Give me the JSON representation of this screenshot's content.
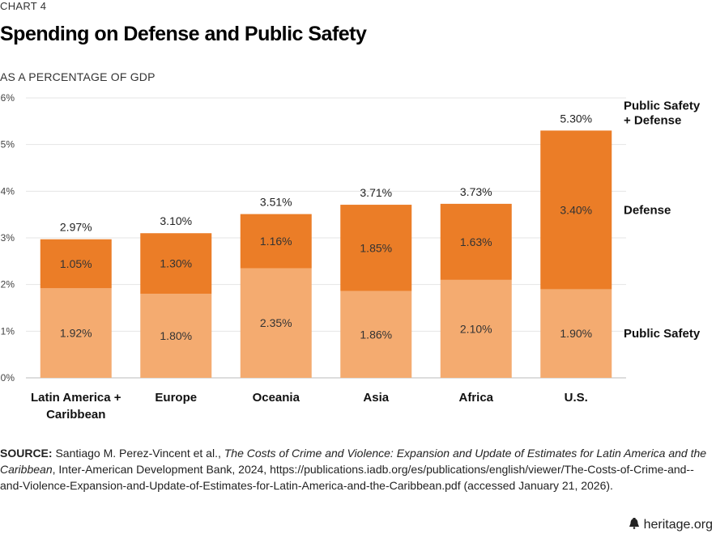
{
  "header": {
    "chart_number": "CHART 4",
    "title": "Spending on Defense and Public Safety",
    "subtitle": "AS A PERCENTAGE OF GDP"
  },
  "chart_data": {
    "type": "bar",
    "stacked": true,
    "title": "Spending on Defense and Public Safety",
    "ylabel": "AS A PERCENTAGE OF GDP",
    "ylim": [
      0,
      6
    ],
    "yticks": [
      "0%",
      "1%",
      "2%",
      "3%",
      "4%",
      "5%",
      "6%"
    ],
    "grid": true,
    "categories": [
      [
        "Latin America +",
        "Caribbean"
      ],
      [
        "Europe"
      ],
      [
        "Oceania"
      ],
      [
        "Asia"
      ],
      [
        "Africa"
      ],
      [
        "U.S."
      ]
    ],
    "series": [
      {
        "name": "Public Safety",
        "color": "#F4AB70",
        "values": [
          1.92,
          1.8,
          2.35,
          1.86,
          2.1,
          1.9
        ],
        "labels": [
          "1.92%",
          "1.80%",
          "2.35%",
          "1.86%",
          "2.10%",
          "1.90%"
        ]
      },
      {
        "name": "Defense",
        "color": "#EB7D27",
        "values": [
          1.05,
          1.3,
          1.16,
          1.85,
          1.63,
          3.4
        ],
        "labels": [
          "1.05%",
          "1.30%",
          "1.16%",
          "1.85%",
          "1.63%",
          "3.40%"
        ]
      }
    ],
    "totals": {
      "name": [
        "Public Safety",
        "+ Defense"
      ],
      "values": [
        2.97,
        3.1,
        3.51,
        3.71,
        3.73,
        5.3
      ],
      "labels": [
        "2.97%",
        "3.10%",
        "3.51%",
        "3.71%",
        "3.73%",
        "5.30%"
      ]
    },
    "annotations": {
      "top_series_label_lines": [
        "Public Safety",
        "+ Defense"
      ],
      "middle_series_label": "Defense",
      "bottom_series_label": "Public Safety"
    }
  },
  "source": {
    "label": "SOURCE:",
    "authors": " Santiago M. Perez-Vincent et al., ",
    "work_title": "The Costs of Crime and Violence: Expansion and Update of Estimates for Latin America and the Caribbean",
    "details": ", Inter-American Development Bank, 2024, https://publications.iadb.org/es/publications/english/viewer/The-Costs-of-Crime-and--and-Violence-Expansion-and-Update-of-Estimates-for-Latin-America-and-the-Caribbean.pdf (accessed January 21, 2026)."
  },
  "footer": {
    "site": "heritage.org"
  },
  "icons": {
    "footer_icon": "liberty-bell-icon"
  }
}
